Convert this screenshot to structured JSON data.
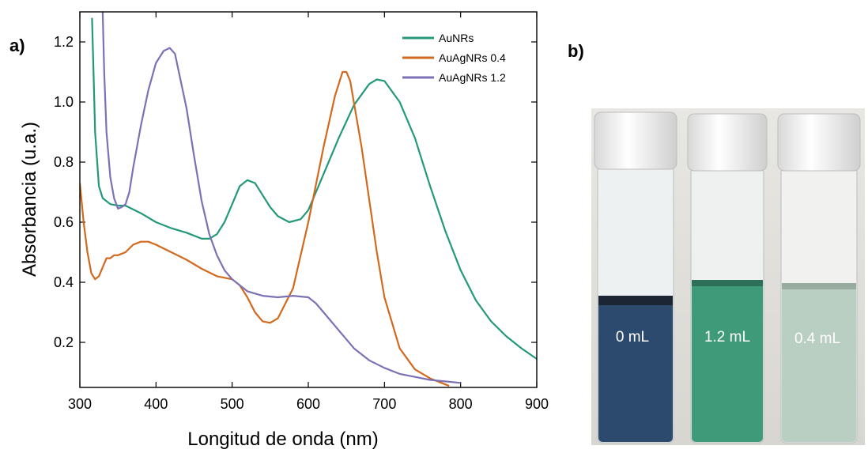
{
  "chart_data": {
    "type": "line",
    "panel_label": "a)",
    "xlabel": "Longitud de onda (nm)",
    "ylabel": "Absorbancia (u.a.)",
    "xlim": [
      300,
      900
    ],
    "xticks": [
      300,
      400,
      500,
      600,
      700,
      800,
      900
    ],
    "ylim": [
      0.05,
      1.3
    ],
    "yticks": [
      0.2,
      0.4,
      0.6,
      0.8,
      {
        "value": 1,
        "label": "1.0"
      },
      1.2
    ],
    "legend": "upper right",
    "series": [
      {
        "name": "AuNRs",
        "color": "#23997a",
        "x": [
          316,
          318,
          320,
          325,
          330,
          340,
          350,
          360,
          380,
          400,
          420,
          440,
          460,
          470,
          480,
          490,
          500,
          510,
          520,
          530,
          540,
          550,
          560,
          575,
          590,
          600,
          620,
          640,
          660,
          680,
          690,
          700,
          720,
          740,
          760,
          780,
          800,
          820,
          840,
          860,
          880,
          900
        ],
        "values": [
          1.28,
          1.1,
          0.9,
          0.72,
          0.68,
          0.66,
          0.655,
          0.655,
          0.63,
          0.6,
          0.58,
          0.565,
          0.545,
          0.545,
          0.56,
          0.6,
          0.66,
          0.72,
          0.74,
          0.73,
          0.69,
          0.65,
          0.62,
          0.6,
          0.61,
          0.64,
          0.76,
          0.88,
          0.99,
          1.06,
          1.075,
          1.07,
          1.0,
          0.88,
          0.72,
          0.57,
          0.44,
          0.34,
          0.27,
          0.22,
          0.18,
          0.145
        ]
      },
      {
        "name": "AuAgNRs 0.4",
        "color": "#d2691e",
        "x": [
          300,
          305,
          310,
          315,
          320,
          325,
          330,
          335,
          340,
          345,
          350,
          360,
          370,
          380,
          390,
          400,
          420,
          440,
          460,
          480,
          500,
          510,
          520,
          530,
          540,
          550,
          560,
          580,
          600,
          620,
          635,
          645,
          650,
          655,
          670,
          690,
          700,
          720,
          740,
          760,
          780,
          785
        ],
        "values": [
          0.73,
          0.6,
          0.5,
          0.43,
          0.41,
          0.42,
          0.45,
          0.48,
          0.48,
          0.49,
          0.49,
          0.5,
          0.525,
          0.535,
          0.535,
          0.525,
          0.5,
          0.475,
          0.445,
          0.42,
          0.41,
          0.39,
          0.35,
          0.3,
          0.27,
          0.265,
          0.28,
          0.38,
          0.6,
          0.85,
          1.02,
          1.1,
          1.1,
          1.07,
          0.85,
          0.5,
          0.35,
          0.18,
          0.11,
          0.08,
          0.06,
          0.055
        ]
      },
      {
        "name": "AuAgNRs 1.2",
        "color": "#7b72b5",
        "x": [
          330,
          332,
          335,
          340,
          345,
          350,
          355,
          360,
          365,
          370,
          380,
          390,
          400,
          410,
          418,
          425,
          430,
          440,
          450,
          460,
          470,
          480,
          490,
          500,
          520,
          540,
          560,
          580,
          600,
          610,
          620,
          640,
          660,
          680,
          700,
          720,
          740,
          760,
          780,
          800
        ],
        "values": [
          1.3,
          1.1,
          0.9,
          0.75,
          0.68,
          0.645,
          0.65,
          0.66,
          0.7,
          0.78,
          0.92,
          1.04,
          1.13,
          1.17,
          1.18,
          1.16,
          1.1,
          0.98,
          0.82,
          0.67,
          0.56,
          0.49,
          0.44,
          0.41,
          0.37,
          0.355,
          0.35,
          0.355,
          0.35,
          0.33,
          0.3,
          0.24,
          0.18,
          0.14,
          0.115,
          0.095,
          0.085,
          0.075,
          0.07,
          0.065
        ]
      }
    ]
  },
  "photo": {
    "panel_label": "b)",
    "vial_labels": [
      "0 mL",
      "1.2 mL",
      "0.4 mL"
    ]
  }
}
